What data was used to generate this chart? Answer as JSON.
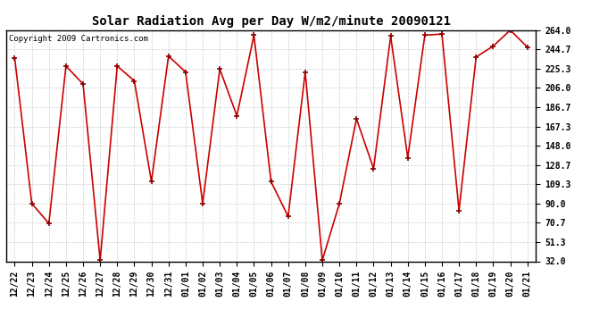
{
  "title": "Solar Radiation Avg per Day W/m2/minute 20090121",
  "copyright": "Copyright 2009 Cartronics.com",
  "x_labels": [
    "12/22",
    "12/23",
    "12/24",
    "12/25",
    "12/26",
    "12/27",
    "12/28",
    "12/29",
    "12/30",
    "12/31",
    "01/01",
    "01/02",
    "01/03",
    "01/04",
    "01/05",
    "01/06",
    "01/07",
    "01/08",
    "01/09",
    "01/10",
    "01/11",
    "01/12",
    "01/13",
    "01/14",
    "01/15",
    "01/16",
    "01/17",
    "01/18",
    "01/19",
    "01/20",
    "01/21"
  ],
  "values": [
    236,
    90,
    70,
    228,
    210,
    33,
    228,
    213,
    112,
    238,
    222,
    90,
    225,
    178,
    259,
    112,
    77,
    222,
    33,
    90,
    175,
    125,
    258,
    136,
    259,
    260,
    83,
    237,
    248,
    264,
    247
  ],
  "y_ticks": [
    32.0,
    51.3,
    70.7,
    90.0,
    109.3,
    128.7,
    148.0,
    167.3,
    186.7,
    206.0,
    225.3,
    244.7,
    264.0
  ],
  "ylim": [
    32.0,
    264.0
  ],
  "line_color": "#cc0000",
  "marker_color": "#880000",
  "bg_color": "#ffffff",
  "grid_color": "#cccccc",
  "title_fontsize": 10,
  "tick_fontsize": 7,
  "copyright_fontsize": 6.5
}
